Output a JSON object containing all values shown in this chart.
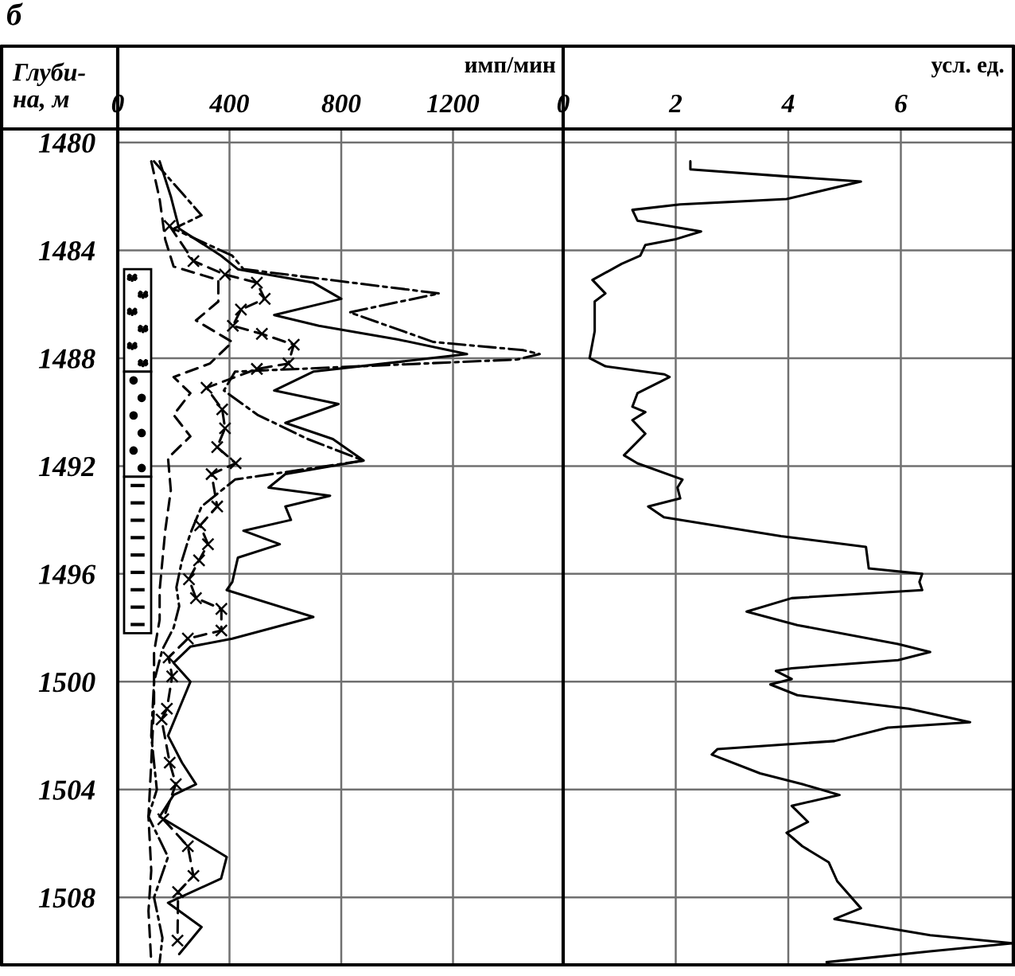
{
  "chart_data": [
    {
      "type": "line",
      "title": "б",
      "xlabel": "имп/мин",
      "ylabel": "Глуби-\nна, м",
      "orientation": "horizontal",
      "xlim": [
        0,
        1600
      ],
      "xticks": [
        0,
        400,
        800,
        1200
      ],
      "ylim": [
        1510.5,
        1479.5
      ],
      "yticks": [
        1480,
        1484,
        1488,
        1492,
        1496,
        1500,
        1504,
        1508
      ],
      "grid": true,
      "series": [
        {
          "color": "#000000",
          "line_style": "solid",
          "marker": "none",
          "x": [
            1480.7,
            1482,
            1483.2,
            1484.2,
            1484.7,
            1485.2,
            1485.8,
            1486.4,
            1486.8,
            1487.3,
            1487.85,
            1488.5,
            1489.2,
            1489.7,
            1490.4,
            1491,
            1491.8,
            1492.3,
            1492.8,
            1493.1,
            1493.5,
            1494,
            1494.4,
            1494.9,
            1495.4,
            1496.3,
            1496.6,
            1497.6,
            1498.4,
            1498.7,
            1499.3,
            1500,
            1501,
            1502,
            1503,
            1503.8,
            1504.2,
            1505,
            1506.5,
            1507.3,
            1508.2,
            1509.1,
            1510.1
          ],
          "values": [
            150,
            190,
            220,
            370,
            430,
            700,
            800,
            560,
            720,
            1000,
            1250,
            700,
            560,
            790,
            600,
            770,
            880,
            600,
            540,
            760,
            600,
            620,
            450,
            580,
            430,
            410,
            390,
            700,
            410,
            260,
            200,
            260,
            220,
            180,
            230,
            280,
            200,
            150,
            390,
            370,
            180,
            300,
            220
          ]
        },
        {
          "color": "#000000",
          "line_style": "dashed",
          "marker": "none",
          "x": [
            1480.7,
            1482.7,
            1483.2,
            1484.2,
            1484.7,
            1485.6,
            1486.3,
            1487.4,
            1487.7,
            1487.85,
            1488.05,
            1488.5,
            1489.2,
            1490.1,
            1491,
            1491.8,
            1492.5,
            1493.5,
            1494.5,
            1495.5,
            1496.5,
            1497.2,
            1498,
            1498.8,
            1500,
            1502,
            1504,
            1505,
            1506.5,
            1508,
            1509.5,
            1510.4
          ],
          "values": [
            130,
            300,
            200,
            410,
            450,
            1150,
            830,
            1130,
            1450,
            1510,
            1430,
            420,
            380,
            500,
            680,
            880,
            420,
            300,
            260,
            230,
            210,
            220,
            200,
            160,
            130,
            120,
            140,
            110,
            180,
            130,
            160,
            150
          ]
        },
        {
          "color": "#000000",
          "line_style": "dotted",
          "marker": "none",
          "x": [
            1480.7,
            1482.1,
            1483.6,
            1484.6,
            1485.1,
            1485.9,
            1486.6,
            1487.4,
            1488.2,
            1488.7,
            1489.3,
            1490.1,
            1490.9,
            1491.7,
            1492.9,
            1494.4,
            1496.6,
            1497.7,
            1498.9,
            1500.8,
            1503,
            1505,
            1507,
            1508.5,
            1510.4
          ],
          "values": [
            120,
            150,
            170,
            200,
            360,
            360,
            280,
            410,
            330,
            200,
            260,
            200,
            260,
            180,
            190,
            170,
            150,
            150,
            130,
            130,
            120,
            110,
            120,
            110,
            120
          ]
        },
        {
          "color": "#000000",
          "line_style": "dotted",
          "marker": "cross",
          "x": [
            1483.1,
            1484.4,
            1484.9,
            1485.2,
            1485.8,
            1486.2,
            1486.8,
            1487.1,
            1487.5,
            1488.2,
            1488.4,
            1489.1,
            1489.9,
            1490.6,
            1491.3,
            1491.9,
            1492.3,
            1493.5,
            1494.2,
            1494.9,
            1495.5,
            1496.2,
            1496.9,
            1497.3,
            1498.1,
            1498.4,
            1499.1,
            1499.8,
            1501,
            1501.4,
            1503,
            1503.8,
            1505.1,
            1506.1,
            1507.2,
            1507.8,
            1509.6
          ],
          "values": [
            186,
            271,
            384,
            498,
            526,
            441,
            412,
            516,
            630,
            611,
            498,
            318,
            374,
            384,
            356,
            422,
            336,
            356,
            295,
            323,
            291,
            255,
            280,
            371,
            371,
            251,
            182,
            195,
            176,
            157,
            186,
            208,
            163,
            251,
            271,
            216,
            214
          ]
        }
      ]
    },
    {
      "type": "line",
      "xlabel": "усл. ед.",
      "orientation": "horizontal",
      "xlim": [
        0,
        8
      ],
      "xticks": [
        0,
        2,
        4,
        6
      ],
      "ylim": [
        1510.5,
        1479.5
      ],
      "yticks": [
        1480,
        1484,
        1488,
        1492,
        1496,
        1500,
        1504,
        1508
      ],
      "grid": true,
      "tick_labels": "x",
      "series": [
        {
          "color": "#000000",
          "line_style": "solid",
          "marker": "none",
          "x": [
            1480.7,
            1481.0,
            1481.26,
            1481.45,
            1482.1,
            1482.3,
            1482.5,
            1482.9,
            1483.3,
            1483.6,
            1483.8,
            1484.2,
            1484.5,
            1485.1,
            1485.6,
            1485.9,
            1487.0,
            1488.0,
            1488.3,
            1488.6,
            1488.7,
            1488.85,
            1489.3,
            1489.8,
            1490.0,
            1490.3,
            1490.8,
            1491.6,
            1491.9,
            1492.5,
            1492.8,
            1493.2,
            1493.5,
            1493.9,
            1494.6,
            1495.0,
            1495.8,
            1496.0,
            1496.3,
            1496.6,
            1496.9,
            1497.4,
            1497.9,
            1498.6,
            1498.9,
            1499.2,
            1499.5,
            1499.6,
            1499.9,
            1500.1,
            1500.5,
            1501.0,
            1501.5,
            1501.7,
            1502.2,
            1502.5,
            1502.7,
            1503.4,
            1503.8,
            1504.2,
            1504.6,
            1505.2,
            1505.6,
            1506.1,
            1506.7,
            1507.4,
            1508.4,
            1508.8,
            1509.4,
            1509.7,
            1510.0,
            1510.4
          ],
          "values": [
            2.26,
            2.26,
            3.97,
            5.29,
            3.97,
            2.08,
            1.23,
            1.32,
            2.45,
            1.98,
            1.46,
            1.37,
            1.04,
            0.52,
            0.75,
            0.56,
            0.56,
            0.47,
            0.75,
            1.8,
            1.89,
            1.75,
            1.32,
            1.23,
            1.46,
            1.23,
            1.46,
            1.08,
            1.32,
            2.12,
            2.03,
            2.08,
            1.51,
            1.79,
            3.87,
            5.38,
            5.43,
            6.38,
            6.33,
            6.38,
            4.06,
            3.26,
            4.16,
            5.95,
            6.52,
            5.95,
            4.06,
            3.78,
            4.06,
            3.68,
            4.16,
            6.14,
            7.23,
            5.77,
            4.82,
            2.74,
            2.64,
            3.5,
            4.25,
            4.91,
            4.06,
            4.35,
            3.97,
            4.25,
            4.72,
            4.87,
            5.29,
            4.82,
            6.52,
            7.99,
            6.52,
            4.68
          ]
        }
      ]
    }
  ]
}
